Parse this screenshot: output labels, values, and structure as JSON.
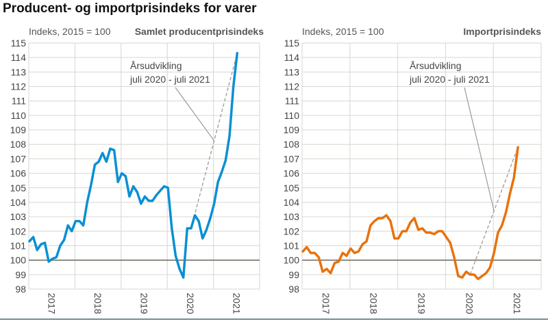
{
  "title": "Producent- og importprisindeks for varer",
  "chart_data": [
    {
      "type": "line",
      "title": "Samlet producentprisindeks",
      "ylabel": "Indeks, 2015 = 100",
      "ylim": [
        98,
        115
      ],
      "yticks": [
        98,
        99,
        100,
        101,
        102,
        103,
        104,
        105,
        106,
        107,
        108,
        109,
        110,
        111,
        112,
        113,
        114,
        115
      ],
      "xlabels": [
        "2017",
        "2018",
        "2019",
        "2020",
        "2021"
      ],
      "x_start": "2017-01",
      "x_frequency": "monthly",
      "grid": true,
      "reference_line": 100,
      "color": "#0a8fd4",
      "values": [
        101.3,
        101.6,
        100.7,
        101.1,
        101.2,
        99.9,
        100.1,
        100.2,
        101.0,
        101.4,
        102.4,
        102.0,
        102.7,
        102.7,
        102.4,
        104.0,
        105.2,
        106.6,
        106.8,
        107.4,
        106.8,
        107.7,
        107.6,
        105.4,
        106.0,
        105.8,
        104.4,
        105.1,
        104.7,
        103.9,
        104.4,
        104.1,
        104.1,
        104.5,
        104.8,
        105.1,
        105.0,
        102.2,
        100.3,
        99.4,
        98.8,
        102.2,
        102.2,
        103.1,
        102.7,
        101.5,
        102.1,
        102.9,
        103.9,
        105.4,
        106.1,
        106.9,
        108.6,
        112.0,
        114.3
      ],
      "annotation": {
        "lines": [
          "Årsudvikling",
          "juli 2020 - juli 2021"
        ],
        "from": "2020-07",
        "to": "2021-07"
      }
    },
    {
      "type": "line",
      "title": "Importprisindeks",
      "ylabel": "Indeks, 2015 = 100",
      "ylim": [
        98,
        115
      ],
      "yticks": [
        98,
        99,
        100,
        101,
        102,
        103,
        104,
        105,
        106,
        107,
        108,
        109,
        110,
        111,
        112,
        113,
        114,
        115
      ],
      "xlabels": [
        "2017",
        "2018",
        "2019",
        "2020",
        "2021"
      ],
      "x_start": "2017-01",
      "x_frequency": "monthly",
      "grid": true,
      "reference_line": 100,
      "color": "#e8720c",
      "values": [
        100.6,
        100.9,
        100.5,
        100.5,
        100.2,
        99.2,
        99.4,
        99.1,
        99.8,
        99.9,
        100.5,
        100.3,
        100.8,
        100.5,
        100.6,
        101.1,
        101.3,
        102.4,
        102.7,
        102.9,
        102.9,
        103.1,
        102.7,
        101.5,
        101.5,
        102.0,
        102.0,
        102.6,
        102.9,
        102.1,
        102.2,
        101.9,
        101.9,
        101.8,
        102.0,
        102.0,
        101.6,
        101.2,
        100.2,
        98.9,
        98.8,
        99.2,
        99.0,
        99.0,
        98.7,
        98.9,
        99.1,
        99.5,
        100.5,
        101.9,
        102.4,
        103.3,
        104.6,
        105.7,
        107.8
      ],
      "annotation": {
        "lines": [
          "Årsudvikling",
          "juli 2020 - juli 2021"
        ],
        "from": "2020-07",
        "to": "2021-07"
      }
    }
  ]
}
